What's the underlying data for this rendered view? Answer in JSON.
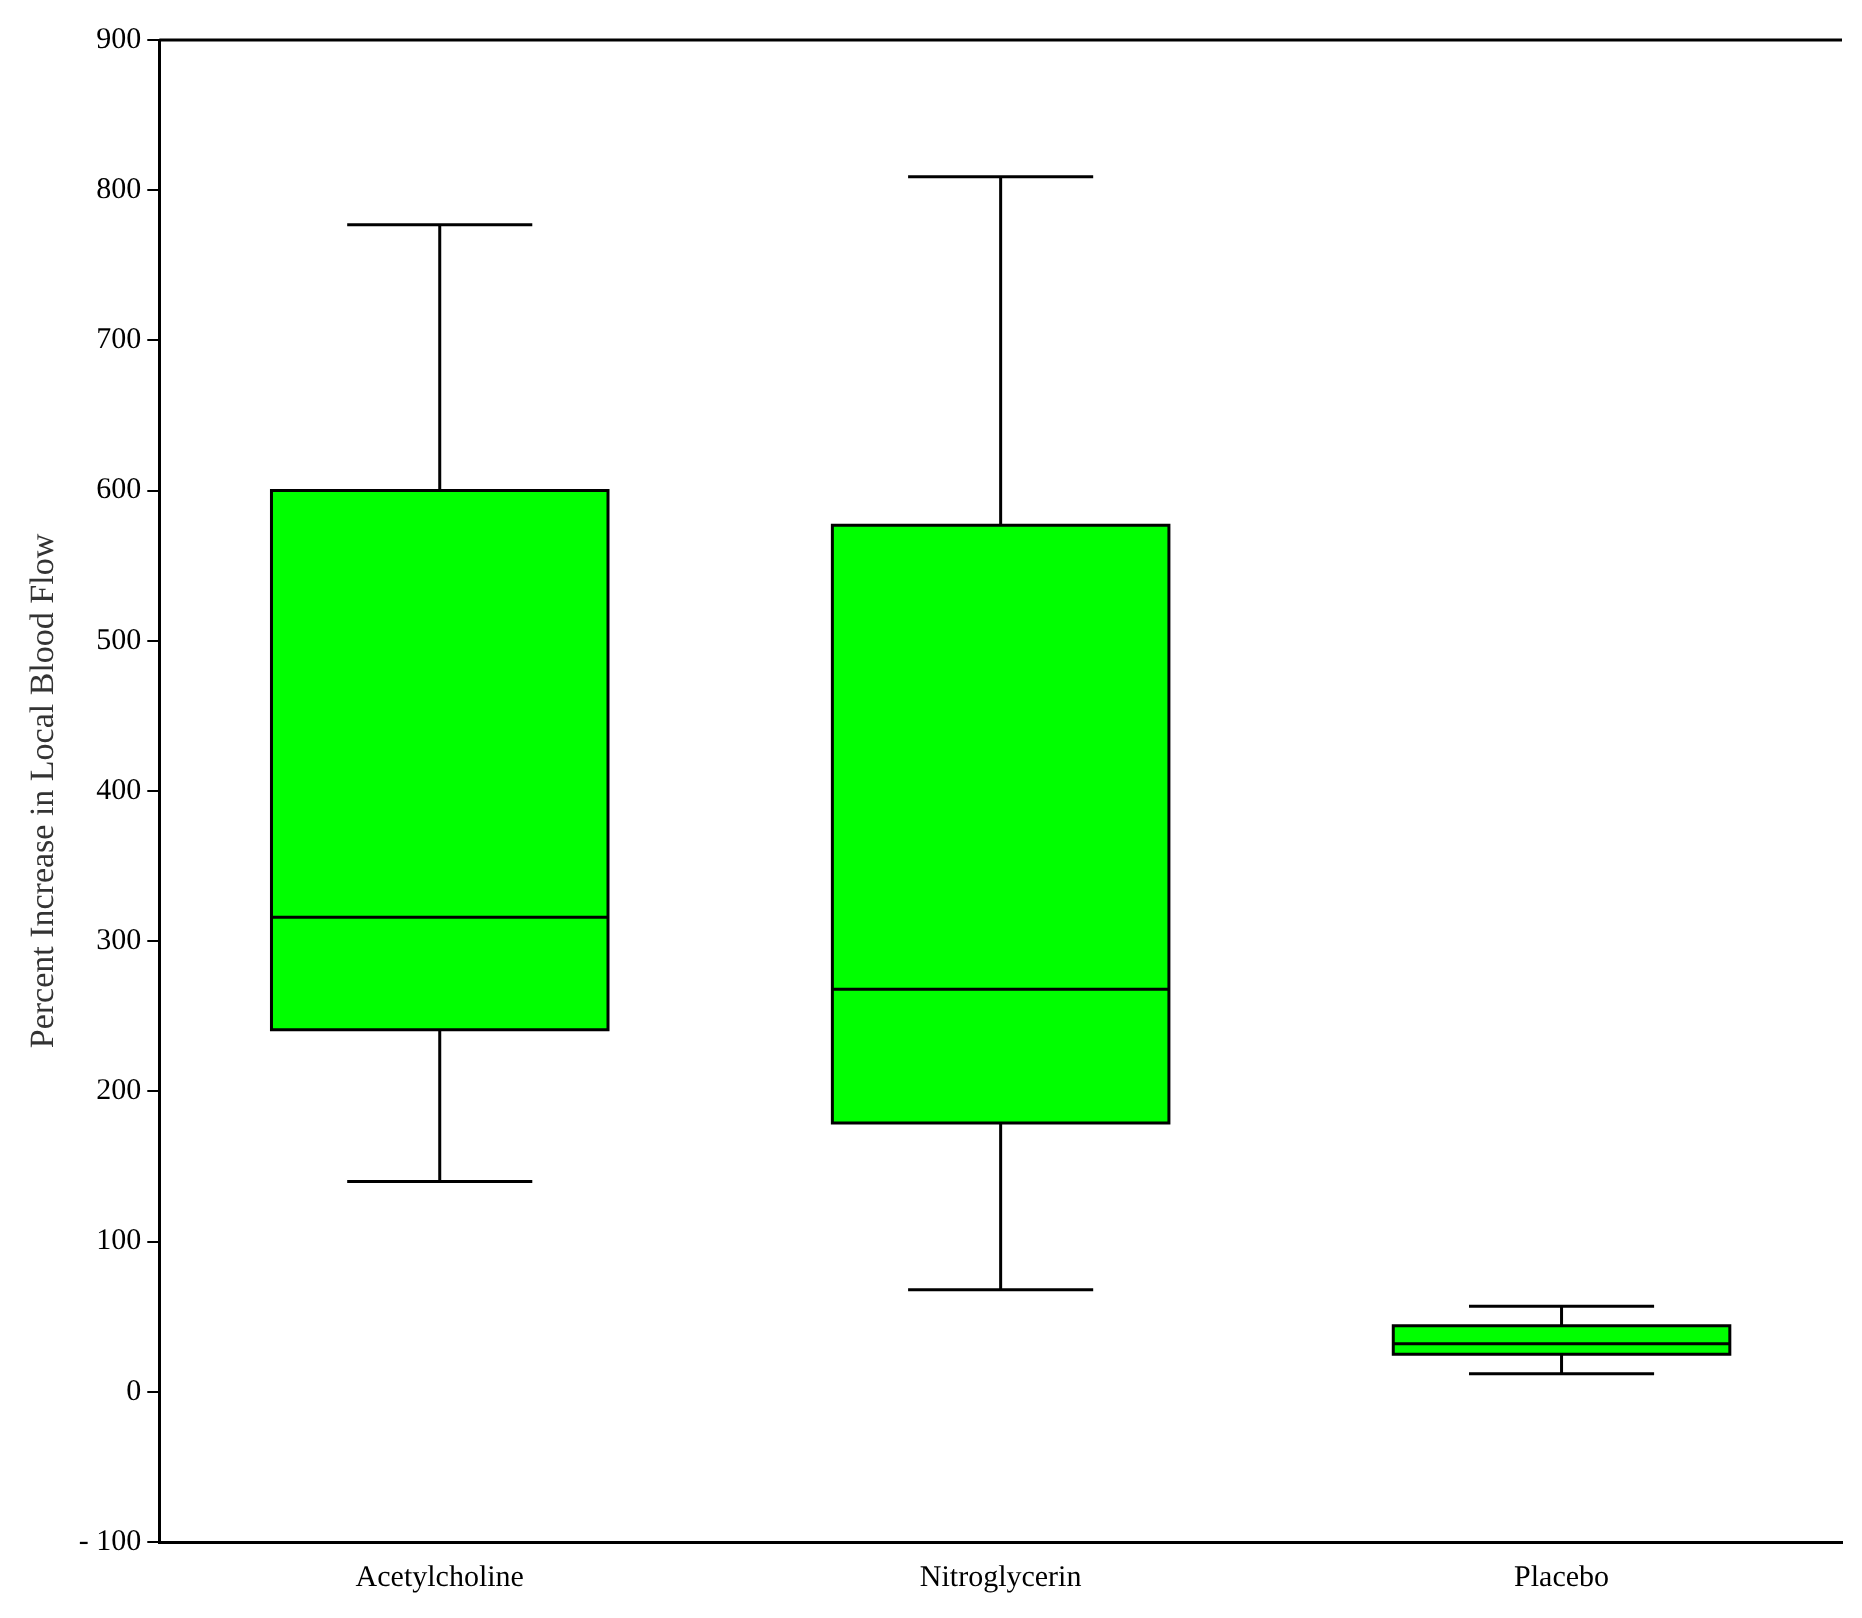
{
  "chart_data": {
    "type": "box",
    "ylabel": "Percent Increase in Local Blood Flow",
    "categories": [
      "Acetylcholine",
      "Nitroglycerin",
      "Placebo"
    ],
    "color": "#00ff00",
    "boxes": [
      {
        "low": 140,
        "q1": 241,
        "median": 316,
        "q3": 600,
        "high": 777
      },
      {
        "low": 68,
        "q1": 179,
        "median": 268,
        "q3": 577,
        "high": 809
      },
      {
        "low": 12,
        "q1": 25,
        "median": 32,
        "q3": 44,
        "high": 57
      }
    ],
    "ylim": [
      -100,
      900
    ],
    "yticks": [
      -100,
      0,
      100,
      200,
      300,
      400,
      500,
      600,
      700,
      800,
      900
    ],
    "grid": false,
    "legend": false
  }
}
